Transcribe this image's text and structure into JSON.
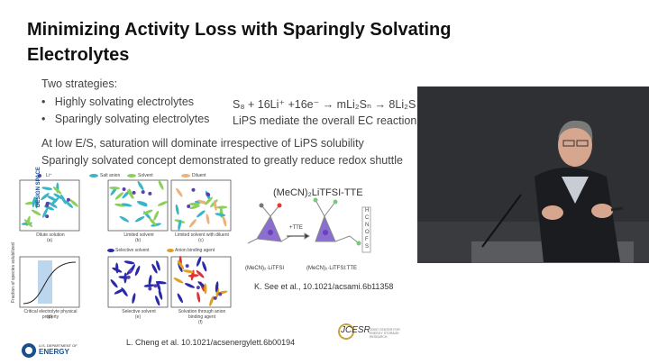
{
  "slide": {
    "title_line1": "Minimizing Activity Loss with Sparingly Solvating",
    "title_line2": "Electrolytes",
    "intro": "Two strategies:",
    "bullets": [
      "Highly solvating electrolytes",
      "Sparingly solvating electrolytes"
    ],
    "equation": "S₈ + 16Li⁺ +16e⁻ → mLi₂Sₙ → 8Li₂S",
    "equation_note": "LiPS mediate the overall EC reaction",
    "point1": "At low E/S, saturation will dominate irrespective of LiPS solubility",
    "point2": "Sparingly solvated concept demonstrated to greatly reduce redox shuttle",
    "figure_left": {
      "legend": [
        "Li⁺",
        "Salt anion",
        "Solvent",
        "Diluent"
      ],
      "panels": [
        {
          "caption": "Dilute solution",
          "letter": "(a)"
        },
        {
          "caption": "Limited solvent",
          "letter": "(b)"
        },
        {
          "caption": "Limited solvent with diluent",
          "letter": "(c)"
        },
        {
          "caption": "Critical electrolyte physical property",
          "letter": "(d)"
        },
        {
          "caption": "Selective solvent",
          "letter": "(e)"
        },
        {
          "caption": "Solvation through anion binding agent",
          "letter": "(f)"
        }
      ],
      "row2_legend": [
        "Selective solvent",
        "Anion binding agent"
      ],
      "design_space": "DESIGN SPACE",
      "y_axis": "Fraction of species solubilized"
    },
    "figure_right": {
      "title": "(MeCN)₂LiTFSI-TTE",
      "arrow": "+TTE",
      "left_label": "(MeCN)₂·LiTFSI",
      "right_label": "(MeCN)₂·LiTFSI:TTE",
      "elements": [
        "H",
        "C",
        "N",
        "O",
        "F",
        "S"
      ]
    },
    "ref_right": "K. See et al., 10.1021/acsami.6b11358",
    "ref_left": "L. Cheng et al. 10.1021/acsenergylett.6b00194",
    "logo_doe_top": "U.S. DEPARTMENT OF",
    "logo_doe": "ENERGY",
    "logo_jcesr": "JCESR",
    "logo_jcesr_sub": "JOINT CENTER FOR ENERGY STORAGE RESEARCH"
  }
}
